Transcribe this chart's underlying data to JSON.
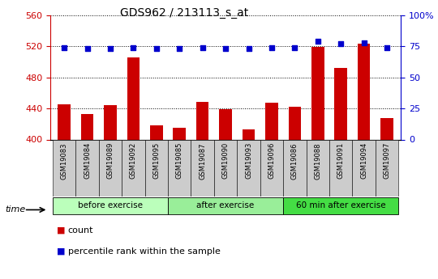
{
  "title": "GDS962 / 213113_s_at",
  "samples": [
    "GSM19083",
    "GSM19084",
    "GSM19089",
    "GSM19092",
    "GSM19095",
    "GSM19085",
    "GSM19087",
    "GSM19090",
    "GSM19093",
    "GSM19096",
    "GSM19086",
    "GSM19088",
    "GSM19091",
    "GSM19094",
    "GSM19097"
  ],
  "counts": [
    445,
    433,
    444,
    506,
    418,
    415,
    448,
    439,
    413,
    447,
    442,
    519,
    492,
    524,
    428
  ],
  "percentile_ranks": [
    74,
    73,
    73,
    74,
    73,
    73,
    74,
    73,
    73,
    74,
    74,
    79,
    77,
    78,
    74
  ],
  "groups": [
    {
      "label": "before exercise",
      "start": 0,
      "end": 5
    },
    {
      "label": "after exercise",
      "start": 5,
      "end": 10
    },
    {
      "label": "60 min after exercise",
      "start": 10,
      "end": 15
    }
  ],
  "group_colors": [
    "#bbffbb",
    "#99ee99",
    "#44dd44"
  ],
  "ylim_left": [
    400,
    560
  ],
  "ylim_right": [
    0,
    100
  ],
  "yticks_left": [
    400,
    440,
    480,
    520,
    560
  ],
  "yticks_right": [
    0,
    25,
    50,
    75,
    100
  ],
  "bar_color": "#cc0000",
  "dot_color": "#0000cc",
  "title_color": "#000000",
  "left_tick_color": "#cc0000",
  "right_tick_color": "#0000cc",
  "xtick_bg": "#cccccc"
}
